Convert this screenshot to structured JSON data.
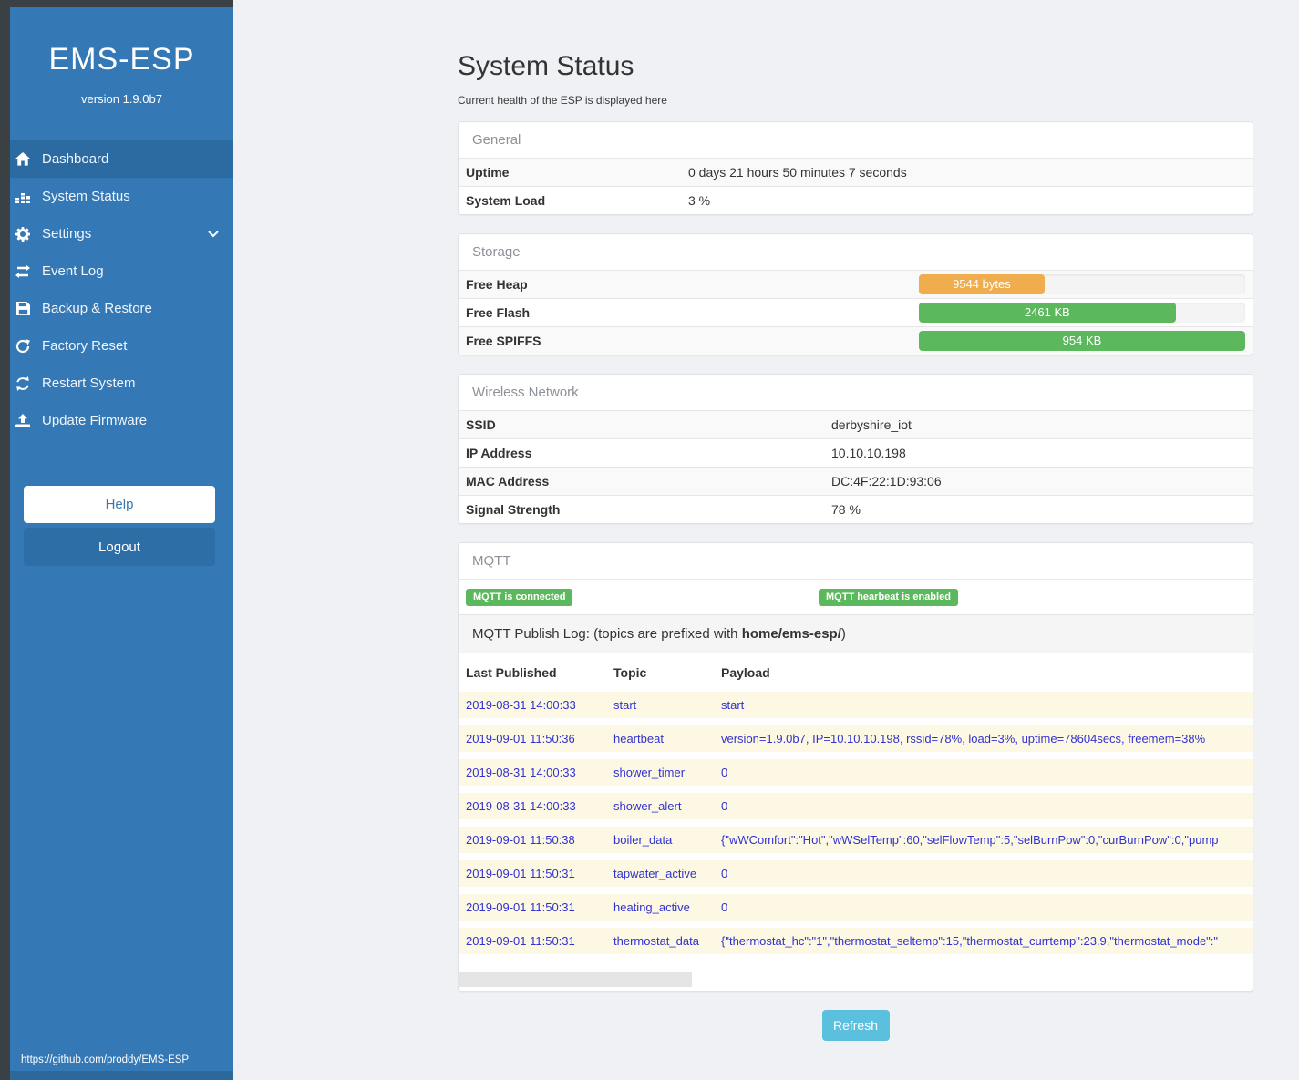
{
  "colors": {
    "sidebar_blue": "#3478b5",
    "active_item_blue": "#2c6ba2",
    "success_green": "#5cb85c",
    "warning_orange": "#f0ad4e",
    "info_blue": "#5bc0de",
    "log_text_blue": "#3232cf",
    "log_row_bg": "#fcf8e3"
  },
  "sidebar": {
    "brand": "EMS-ESP",
    "version": "version 1.9.0b7",
    "items": [
      {
        "label": "Dashboard",
        "icon": "home-icon",
        "active": true
      },
      {
        "label": "System Status",
        "icon": "system-status-icon",
        "active": false
      },
      {
        "label": "Settings",
        "icon": "gear-icon",
        "active": false,
        "has_chevron": true
      },
      {
        "label": "Event Log",
        "icon": "exchange-icon",
        "active": false
      },
      {
        "label": "Backup & Restore",
        "icon": "save-icon",
        "active": false
      },
      {
        "label": "Factory Reset",
        "icon": "factory-reset-icon",
        "active": false
      },
      {
        "label": "Restart System",
        "icon": "restart-icon",
        "active": false
      },
      {
        "label": "Update Firmware",
        "icon": "upload-icon",
        "active": false
      }
    ],
    "help_label": "Help",
    "logout_label": "Logout",
    "footer_link": "https://github.com/proddy/EMS-ESP"
  },
  "page": {
    "title": "System Status",
    "subtitle": "Current health of the ESP is displayed here",
    "refresh_label": "Refresh"
  },
  "general": {
    "heading": "General",
    "rows": [
      {
        "label": "Uptime",
        "value": "0 days 21 hours 50 minutes 7 seconds"
      },
      {
        "label": "System Load",
        "value": "3 %"
      }
    ]
  },
  "storage": {
    "heading": "Storage",
    "rows": [
      {
        "label": "Free Heap",
        "value": "9544 bytes",
        "percent": 38.5,
        "color": "#f0ad4e"
      },
      {
        "label": "Free Flash",
        "value": "2461 KB",
        "percent": 78.7,
        "color": "#5cb85c"
      },
      {
        "label": "Free SPIFFS",
        "value": "954 KB",
        "percent": 100,
        "color": "#5cb85c"
      }
    ]
  },
  "wireless": {
    "heading": "Wireless Network",
    "rows": [
      {
        "label": "SSID",
        "value": "derbyshire_iot"
      },
      {
        "label": "IP Address",
        "value": "10.10.10.198"
      },
      {
        "label": "MAC Address",
        "value": "DC:4F:22:1D:93:06"
      },
      {
        "label": "Signal Strength",
        "value": "78 %"
      }
    ]
  },
  "mqtt": {
    "heading": "MQTT",
    "badges": [
      "MQTT is connected",
      "MQTT hearbeat is enabled"
    ],
    "publish_log_prefix": "MQTT Publish Log: (topics are prefixed with ",
    "publish_log_bold": "home/ems-esp/",
    "publish_log_suffix": ")",
    "columns": [
      "Last Published",
      "Topic",
      "Payload"
    ],
    "rows": [
      {
        "time": "2019-08-31 14:00:33",
        "topic": "start",
        "payload": "start"
      },
      {
        "time": "2019-09-01 11:50:36",
        "topic": "heartbeat",
        "payload": "version=1.9.0b7, IP=10.10.10.198, rssid=78%, load=3%, uptime=78604secs, freemem=38%"
      },
      {
        "time": "2019-08-31 14:00:33",
        "topic": "shower_timer",
        "payload": "0"
      },
      {
        "time": "2019-08-31 14:00:33",
        "topic": "shower_alert",
        "payload": "0"
      },
      {
        "time": "2019-09-01 11:50:38",
        "topic": "boiler_data",
        "payload": "{\"wWComfort\":\"Hot\",\"wWSelTemp\":60,\"selFlowTemp\":5,\"selBurnPow\":0,\"curBurnPow\":0,\"pump"
      },
      {
        "time": "2019-09-01 11:50:31",
        "topic": "tapwater_active",
        "payload": "0"
      },
      {
        "time": "2019-09-01 11:50:31",
        "topic": "heating_active",
        "payload": "0"
      },
      {
        "time": "2019-09-01 11:50:31",
        "topic": "thermostat_data",
        "payload": "{\"thermostat_hc\":\"1\",\"thermostat_seltemp\":15,\"thermostat_currtemp\":23.9,\"thermostat_mode\":\""
      }
    ]
  }
}
